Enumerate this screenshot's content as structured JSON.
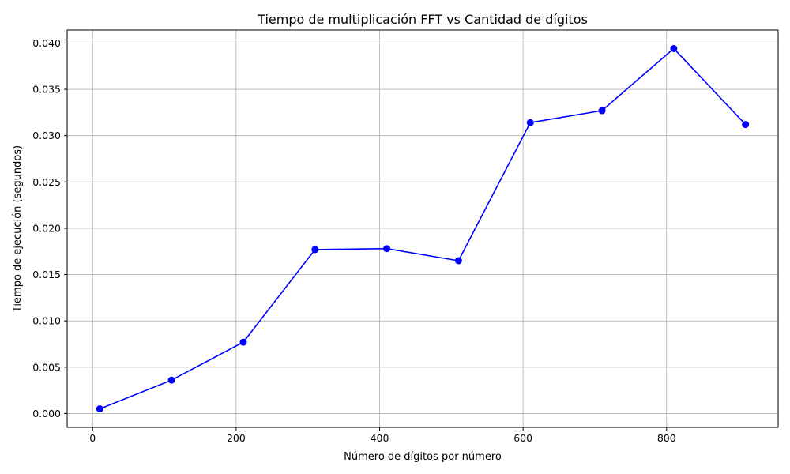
{
  "chart_data": {
    "type": "line",
    "title": "Tiempo de multiplicación FFT vs Cantidad de dígitos",
    "xlabel": "Número de dígitos por número",
    "ylabel": "Tiempo de ejecución (segundos)",
    "x": [
      10,
      110,
      210,
      310,
      410,
      510,
      610,
      710,
      810,
      910
    ],
    "series": [
      {
        "values": [
          0.0005,
          0.0036,
          0.0077,
          0.0177,
          0.0178,
          0.0165,
          0.0314,
          0.0327,
          0.0394,
          0.0312
        ],
        "color": "#0000ff",
        "marker": "circle"
      }
    ],
    "xlim": [
      -35.5,
      955.5
    ],
    "ylim": [
      -0.0015,
      0.0414
    ],
    "xticks": [
      0,
      200,
      400,
      600,
      800
    ],
    "xtick_labels": [
      "0",
      "200",
      "400",
      "600",
      "800"
    ],
    "yticks": [
      0,
      0.005,
      0.01,
      0.015,
      0.02,
      0.025,
      0.03,
      0.035,
      0.04
    ],
    "ytick_labels": [
      "0.000",
      "0.005",
      "0.010",
      "0.015",
      "0.020",
      "0.025",
      "0.030",
      "0.035",
      "0.040"
    ],
    "grid": true,
    "grid_color": "#b0b0b0"
  }
}
